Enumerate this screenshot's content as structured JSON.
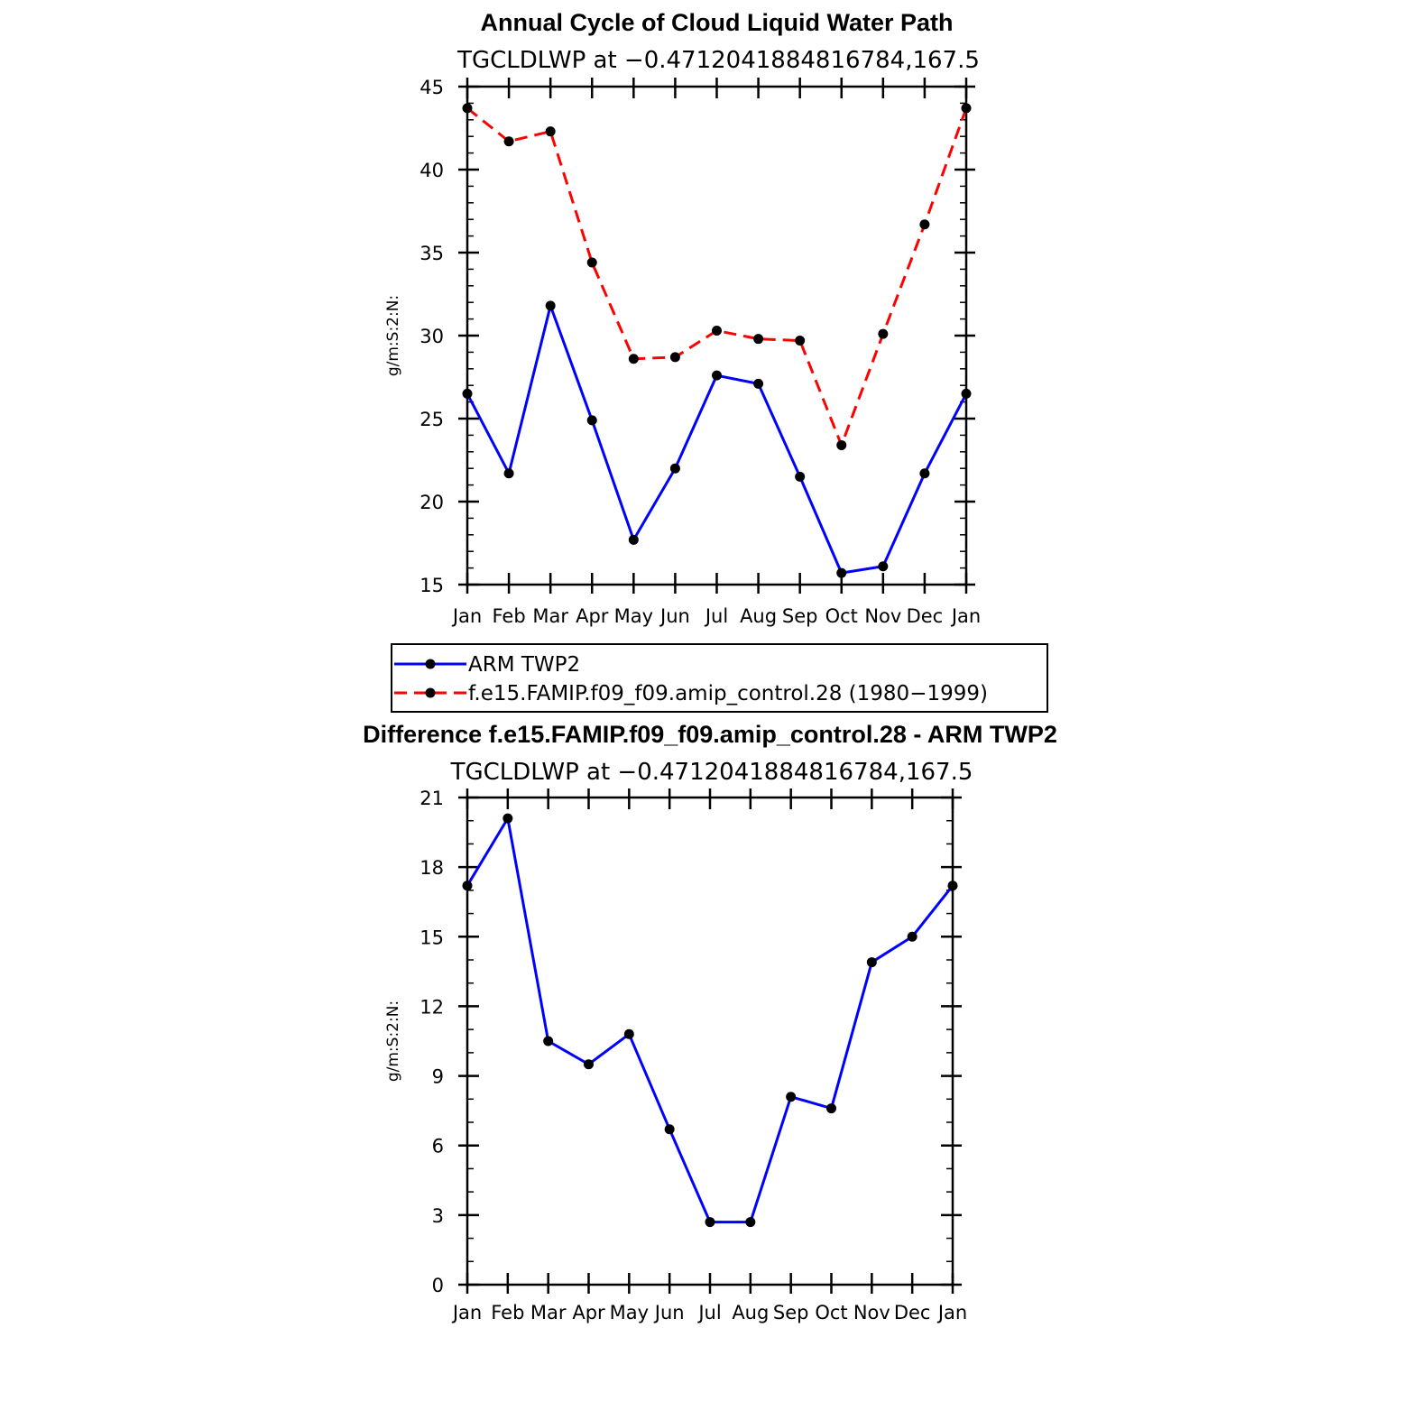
{
  "chart_data": [
    {
      "type": "line",
      "title": "Annual Cycle of Cloud Liquid Water Path",
      "subtitle": "TGCLDLWP at −0.4712041884816784,167.5",
      "xlabel": "",
      "ylabel": "g/m:S:2:N:",
      "categories": [
        "Jan",
        "Feb",
        "Mar",
        "Apr",
        "May",
        "Jun",
        "Jul",
        "Aug",
        "Sep",
        "Oct",
        "Nov",
        "Dec",
        "Jan"
      ],
      "ylim": [
        15,
        45
      ],
      "yticks": [
        15,
        20,
        25,
        30,
        35,
        40,
        45
      ],
      "series": [
        {
          "name": "ARM TWP2",
          "color": "#0000ff",
          "dash": "solid",
          "values": [
            26.5,
            21.7,
            31.8,
            24.9,
            17.7,
            22.0,
            27.6,
            27.1,
            21.5,
            15.7,
            16.1,
            21.7,
            26.5
          ]
        },
        {
          "name": "f.e15.FAMIP.f09_f09.amip_control.28 (1980−1999)",
          "color": "#ff0000",
          "dash": "dashed",
          "values": [
            43.7,
            41.7,
            42.3,
            34.4,
            28.6,
            28.7,
            30.3,
            29.8,
            29.7,
            23.4,
            30.1,
            36.7,
            43.7
          ]
        }
      ],
      "legend": {
        "position": "below",
        "entries": [
          "ARM TWP2",
          "f.e15.FAMIP.f09_f09.amip_control.28 (1980−1999)"
        ]
      }
    },
    {
      "type": "line",
      "title": "Difference f.e15.FAMIP.f09_f09.amip_control.28 - ARM TWP2",
      "subtitle": "TGCLDLWP at −0.4712041884816784,167.5",
      "xlabel": "",
      "ylabel": "g/m:S:2:N:",
      "categories": [
        "Jan",
        "Feb",
        "Mar",
        "Apr",
        "May",
        "Jun",
        "Jul",
        "Aug",
        "Sep",
        "Oct",
        "Nov",
        "Dec",
        "Jan"
      ],
      "ylim": [
        0,
        21
      ],
      "yticks": [
        0,
        3,
        6,
        9,
        12,
        15,
        18,
        21
      ],
      "series": [
        {
          "name": "Difference",
          "color": "#0000ff",
          "dash": "solid",
          "values": [
            17.2,
            20.1,
            10.5,
            9.5,
            10.8,
            6.7,
            2.7,
            2.7,
            8.1,
            7.6,
            13.9,
            15.0,
            17.2
          ]
        }
      ]
    }
  ]
}
